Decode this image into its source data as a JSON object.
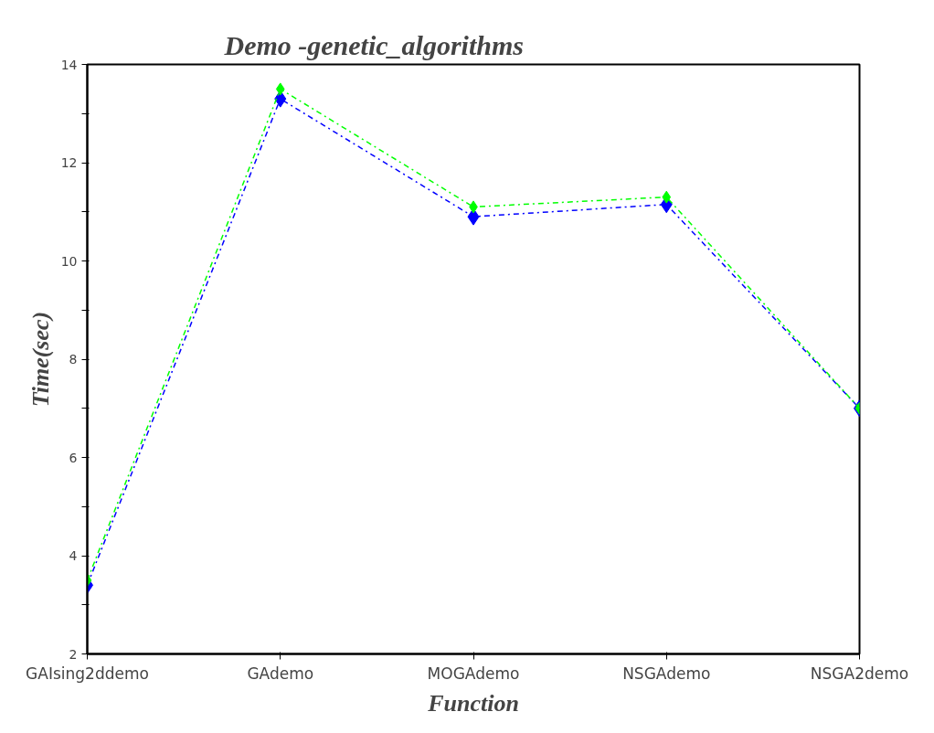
{
  "chart_data": {
    "type": "line",
    "title": "Demo -genetic_algorithms",
    "xlabel": "Function",
    "ylabel": "Time(sec)",
    "categories": [
      "GAIsing2ddemo",
      "GAdemo",
      "MOGAdemo",
      "NSGAdemo",
      "NSGA2demo"
    ],
    "series": [
      {
        "color": "#0000ff",
        "values": [
          3.4,
          13.3,
          10.9,
          11.15,
          7.0
        ]
      },
      {
        "color": "#00ff00",
        "values": [
          3.5,
          13.5,
          11.1,
          11.3,
          7.0
        ]
      }
    ],
    "ylim": [
      2,
      14
    ],
    "yticks": [
      2,
      {
        "value": 3,
        "label": null
      },
      4,
      {
        "value": 5,
        "label": null
      },
      6,
      {
        "value": 7,
        "label": null
      },
      8,
      {
        "value": 9,
        "label": null
      },
      10,
      {
        "value": 11,
        "label": null
      },
      12,
      {
        "value": 13,
        "label": null
      },
      14
    ],
    "grid": false,
    "marker": "diamond",
    "line_style": "dashdot"
  }
}
